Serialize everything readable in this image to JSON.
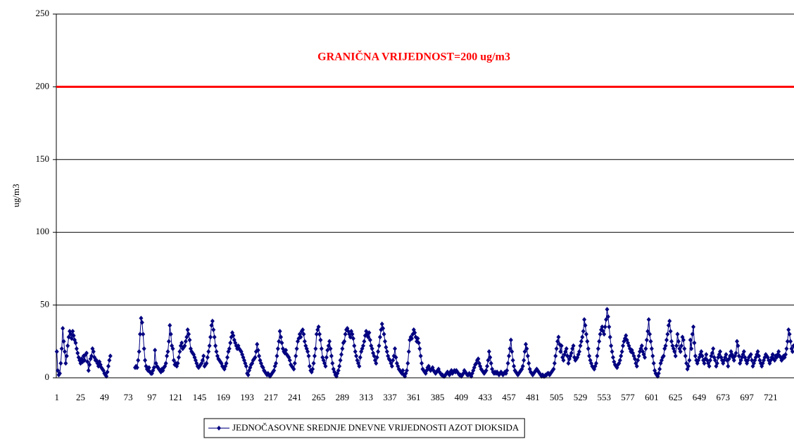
{
  "chart_data": {
    "type": "line",
    "y_label": "ug/m3",
    "annotation": "GRANIČNA VRIJEDNOST=200 ug/m3",
    "threshold": 200,
    "threshold_color": "#ff0000",
    "ylim": [
      0,
      250
    ],
    "yticks": [
      0,
      50,
      100,
      150,
      200,
      250
    ],
    "grid": true,
    "categories": [
      "1",
      null,
      null,
      null,
      null,
      null,
      null,
      null,
      null,
      null,
      null,
      null,
      null,
      null,
      null,
      null,
      null,
      null,
      null,
      null,
      null,
      null,
      null,
      null,
      "25",
      null,
      null,
      null,
      null,
      null,
      null,
      null,
      null,
      null,
      null,
      null,
      null,
      null,
      null,
      null,
      null,
      null,
      null,
      null,
      null,
      null,
      null,
      null,
      "49",
      null,
      null,
      null,
      null,
      null,
      null,
      null,
      null,
      null,
      null,
      null,
      null,
      null,
      null,
      null,
      null,
      null,
      null,
      null,
      null,
      null,
      null,
      null,
      "73",
      null,
      null,
      null,
      null,
      null,
      null,
      null,
      null,
      null,
      null,
      null,
      null,
      null,
      null,
      null,
      null,
      null,
      null,
      null,
      null,
      null,
      null,
      null,
      "97",
      null,
      null,
      null,
      null,
      null,
      null,
      null,
      null,
      null,
      null,
      null,
      null,
      null,
      null,
      null,
      null,
      null,
      null,
      null,
      null,
      null,
      null,
      null,
      "121",
      null,
      null,
      null,
      null,
      null,
      null,
      null,
      null,
      null,
      null,
      null,
      null,
      null,
      null,
      null,
      null,
      null,
      null,
      null,
      null,
      null,
      null,
      null,
      "145",
      null,
      null,
      null,
      null,
      null,
      null,
      null,
      null,
      null,
      null,
      null,
      null,
      null,
      null,
      null,
      null,
      null,
      null,
      null,
      null,
      null,
      null,
      null,
      "169",
      null,
      null,
      null,
      null,
      null,
      null,
      null,
      null,
      null,
      null,
      null,
      null,
      null,
      null,
      null,
      null,
      null,
      null,
      null,
      null,
      null,
      null,
      null,
      "193",
      null,
      null,
      null,
      null,
      null,
      null,
      null,
      null,
      null,
      null,
      null,
      null,
      null,
      null,
      null,
      null,
      null,
      null,
      null,
      null,
      null,
      null,
      null,
      "217",
      null,
      null,
      null,
      null,
      null,
      null,
      null,
      null,
      null,
      null,
      null,
      null,
      null,
      null,
      null,
      null,
      null,
      null,
      null,
      null,
      null,
      null,
      null,
      "241",
      null,
      null,
      null,
      null,
      null,
      null,
      null,
      null,
      null,
      null,
      null,
      null,
      null,
      null,
      null,
      null,
      null,
      null,
      null,
      null,
      null,
      null,
      null,
      "265",
      null,
      null,
      null,
      null,
      null,
      null,
      null,
      null,
      null,
      null,
      null,
      null,
      null,
      null,
      null,
      null,
      null,
      null,
      null,
      null,
      null,
      null,
      null,
      "289",
      null,
      null,
      null,
      null,
      null,
      null,
      null,
      null,
      null,
      null,
      null,
      null,
      null,
      null,
      null,
      null,
      null,
      null,
      null,
      null,
      null,
      null,
      null,
      "313",
      null,
      null,
      null,
      null,
      null,
      null,
      null,
      null,
      null,
      null,
      null,
      null,
      null,
      null,
      null,
      null,
      null,
      null,
      null,
      null,
      null,
      null,
      null,
      "337",
      null,
      null,
      null,
      null,
      null,
      null,
      null,
      null,
      null,
      null,
      null,
      null,
      null,
      null,
      null,
      null,
      null,
      null,
      null,
      null,
      null,
      null,
      null,
      "361",
      null,
      null,
      null,
      null,
      null,
      null,
      null,
      null,
      null,
      null,
      null,
      null,
      null,
      null,
      null,
      null,
      null,
      null,
      null,
      null,
      null,
      null,
      null,
      "385",
      null,
      null,
      null,
      null,
      null,
      null,
      null,
      null,
      null,
      null,
      null,
      null,
      null,
      null,
      null,
      null,
      null,
      null,
      null,
      null,
      null,
      null,
      null,
      "409",
      null,
      null,
      null,
      null,
      null,
      null,
      null,
      null,
      null,
      null,
      null,
      null,
      null,
      null,
      null,
      null,
      null,
      null,
      null,
      null,
      null,
      null,
      null,
      "433",
      null,
      null,
      null,
      null,
      null,
      null,
      null,
      null,
      null,
      null,
      null,
      null,
      null,
      null,
      null,
      null,
      null,
      null,
      null,
      null,
      null,
      null,
      null,
      "457",
      null,
      null,
      null,
      null,
      null,
      null,
      null,
      null,
      null,
      null,
      null,
      null,
      null,
      null,
      null,
      null,
      null,
      null,
      null,
      null,
      null,
      null,
      null,
      "481",
      null,
      null,
      null,
      null,
      null,
      null,
      null,
      null,
      null,
      null,
      null,
      null,
      null,
      null,
      null,
      null,
      null,
      null,
      null,
      null,
      null,
      null,
      null,
      "505",
      null,
      null,
      null,
      null,
      null,
      null,
      null,
      null,
      null,
      null,
      null,
      null,
      null,
      null,
      null,
      null,
      null,
      null,
      null,
      null,
      null,
      null,
      null,
      "529",
      null,
      null,
      null,
      null,
      null,
      null,
      null,
      null,
      null,
      null,
      null,
      null,
      null,
      null,
      null,
      null,
      null,
      null,
      null,
      null,
      null,
      null,
      null,
      "553",
      null,
      null,
      null,
      null,
      null,
      null,
      null,
      null,
      null,
      null,
      null,
      null,
      null,
      null,
      null,
      null,
      null,
      null,
      null,
      null,
      null,
      null,
      null,
      "577",
      null,
      null,
      null,
      null,
      null,
      null,
      null,
      null,
      null,
      null,
      null,
      null,
      null,
      null,
      null,
      null,
      null,
      null,
      null,
      null,
      null,
      null,
      null,
      "601",
      null,
      null,
      null,
      null,
      null,
      null,
      null,
      null,
      null,
      null,
      null,
      null,
      null,
      null,
      null,
      null,
      null,
      null,
      null,
      null,
      null,
      null,
      null,
      "625",
      null,
      null,
      null,
      null,
      null,
      null,
      null,
      null,
      null,
      null,
      null,
      null,
      null,
      null,
      null,
      null,
      null,
      null,
      null,
      null,
      null,
      null,
      null,
      "649",
      null,
      null,
      null,
      null,
      null,
      null,
      null,
      null,
      null,
      null,
      null,
      null,
      null,
      null,
      null,
      null,
      null,
      null,
      null,
      null,
      null,
      null,
      null,
      "673",
      null,
      null,
      null,
      null,
      null,
      null,
      null,
      null,
      null,
      null,
      null,
      null,
      null,
      null,
      null,
      null,
      null,
      null,
      null,
      null,
      null,
      null,
      null,
      "697",
      null,
      null,
      null,
      null,
      null,
      null,
      null,
      null,
      null,
      null,
      null,
      null,
      null,
      null,
      null,
      null,
      null,
      null,
      null,
      null,
      null,
      null,
      null,
      "721",
      null,
      null,
      null,
      null,
      null,
      null,
      null,
      null,
      null,
      null,
      null,
      null,
      null,
      null,
      null,
      null,
      null,
      null,
      null,
      null,
      null,
      null,
      null
    ],
    "series": [
      {
        "name": "JEDNOČASOVNE SREDNJE DNEVNE VRIJEDNOSTI AZOT DIOKSIDA",
        "color": "#000080",
        "values": [
          18,
          5,
          2,
          3,
          10,
          20,
          34,
          25,
          18,
          10,
          15,
          22,
          28,
          32,
          30,
          27,
          32,
          29,
          26,
          24,
          20,
          17,
          14,
          12,
          10,
          13,
          11,
          15,
          12,
          16,
          17,
          11,
          5,
          9,
          13,
          15,
          20,
          18,
          14,
          12,
          12,
          10,
          8,
          11,
          9,
          7,
          6,
          5,
          3,
          2,
          1,
          4,
          8,
          12,
          15,
          null,
          null,
          null,
          null,
          null,
          null,
          null,
          null,
          null,
          null,
          null,
          null,
          null,
          null,
          null,
          null,
          null,
          null,
          null,
          null,
          null,
          null,
          null,
          null,
          7,
          8,
          7,
          12,
          18,
          30,
          41,
          38,
          30,
          20,
          12,
          8,
          6,
          5,
          7,
          4,
          3,
          3,
          5,
          7,
          19,
          10,
          8,
          7,
          6,
          5,
          4,
          6,
          5,
          7,
          8,
          10,
          15,
          18,
          25,
          36,
          30,
          22,
          20,
          12,
          9,
          10,
          8,
          10,
          14,
          18,
          22,
          24,
          20,
          21,
          22,
          25,
          28,
          33,
          30,
          26,
          20,
          18,
          17,
          16,
          14,
          12,
          10,
          8,
          7,
          8,
          9,
          10,
          12,
          15,
          8,
          9,
          10,
          14,
          18,
          22,
          28,
          36,
          39,
          33,
          28,
          22,
          18,
          15,
          13,
          12,
          11,
          10,
          8,
          7,
          6,
          8,
          10,
          14,
          18,
          20,
          24,
          28,
          31,
          29,
          26,
          24,
          22,
          20,
          22,
          20,
          19,
          18,
          16,
          14,
          12,
          10,
          8,
          3,
          2,
          5,
          7,
          9,
          10,
          12,
          13,
          14,
          18,
          23,
          19,
          15,
          12,
          10,
          8,
          7,
          5,
          4,
          3,
          2,
          3,
          2,
          1,
          2,
          3,
          4,
          5,
          8,
          10,
          15,
          20,
          25,
          32,
          28,
          24,
          20,
          18,
          17,
          19,
          16,
          15,
          14,
          12,
          9,
          8,
          7,
          6,
          10,
          15,
          20,
          25,
          27,
          30,
          28,
          32,
          33,
          30,
          25,
          22,
          20,
          18,
          15,
          8,
          5,
          4,
          6,
          10,
          15,
          20,
          30,
          33,
          35,
          30,
          26,
          20,
          14,
          12,
          10,
          8,
          14,
          19,
          22,
          25,
          20,
          15,
          10,
          6,
          4,
          2,
          1,
          3,
          5,
          8,
          12,
          16,
          20,
          24,
          25,
          30,
          33,
          34,
          32,
          30,
          28,
          32,
          30,
          27,
          22,
          18,
          15,
          12,
          10,
          8,
          14,
          18,
          20,
          22,
          25,
          29,
          32,
          30,
          28,
          31,
          26,
          22,
          20,
          17,
          15,
          12,
          10,
          14,
          18,
          22,
          28,
          33,
          37,
          34,
          30,
          25,
          21,
          18,
          15,
          13,
          12,
          10,
          8,
          12,
          15,
          20,
          14,
          10,
          8,
          6,
          5,
          4,
          3,
          5,
          2,
          1,
          3,
          5,
          10,
          18,
          26,
          28,
          27,
          30,
          33,
          31,
          28,
          25,
          27,
          24,
          20,
          15,
          10,
          6,
          5,
          4,
          3,
          5,
          7,
          8,
          6,
          5,
          6,
          7,
          5,
          4,
          3,
          4,
          5,
          6,
          4,
          3,
          2,
          2,
          1,
          1,
          2,
          3,
          4,
          3,
          2,
          4,
          5,
          3,
          4,
          5,
          4,
          5,
          4,
          3,
          2,
          2,
          1,
          2,
          3,
          5,
          4,
          3,
          2,
          2,
          3,
          2,
          1,
          3,
          5,
          7,
          9,
          10,
          12,
          13,
          10,
          8,
          6,
          5,
          4,
          3,
          4,
          5,
          8,
          12,
          18,
          14,
          10,
          6,
          4,
          3,
          4,
          3,
          4,
          3,
          2,
          3,
          4,
          3,
          2,
          3,
          4,
          3,
          5,
          10,
          15,
          20,
          26,
          18,
          12,
          8,
          5,
          4,
          3,
          2,
          3,
          4,
          5,
          6,
          8,
          12,
          18,
          23,
          20,
          15,
          10,
          6,
          4,
          3,
          2,
          3,
          4,
          5,
          6,
          5,
          4,
          3,
          2,
          1,
          2,
          1,
          1,
          2,
          2,
          3,
          3,
          2,
          3,
          4,
          5,
          6,
          10,
          15,
          20,
          25,
          28,
          23,
          18,
          22,
          14,
          12,
          16,
          18,
          20,
          15,
          10,
          13,
          15,
          17,
          20,
          22,
          14,
          12,
          13,
          14,
          16,
          18,
          22,
          25,
          28,
          32,
          40,
          36,
          30,
          25,
          20,
          15,
          12,
          10,
          8,
          7,
          6,
          8,
          10,
          15,
          20,
          25,
          30,
          33,
          35,
          32,
          30,
          35,
          40,
          47,
          42,
          35,
          28,
          22,
          18,
          14,
          11,
          9,
          8,
          7,
          9,
          10,
          12,
          15,
          18,
          22,
          25,
          27,
          29,
          26,
          24,
          22,
          20,
          18,
          19,
          17,
          15,
          13,
          10,
          8,
          12,
          15,
          18,
          20,
          22,
          18,
          16,
          14,
          20,
          26,
          32,
          40,
          30,
          25,
          20,
          15,
          10,
          5,
          3,
          2,
          1,
          3,
          6,
          10,
          12,
          14,
          15,
          20,
          22,
          26,
          30,
          36,
          39,
          32,
          25,
          22,
          20,
          18,
          15,
          22,
          30,
          25,
          20,
          18,
          22,
          28,
          26,
          20,
          15,
          10,
          6,
          8,
          12,
          26,
          20,
          30,
          35,
          24,
          15,
          12,
          10,
          12,
          14,
          16,
          18,
          15,
          12,
          10,
          13,
          16,
          12,
          10,
          8,
          12,
          15,
          17,
          20,
          14,
          12,
          8,
          10,
          14,
          16,
          18,
          14,
          12,
          10,
          12,
          14,
          16,
          12,
          8,
          13,
          15,
          18,
          16,
          14,
          12,
          15,
          17,
          25,
          22,
          15,
          10,
          12,
          14,
          16,
          18,
          14,
          12,
          10,
          12,
          14,
          15,
          16,
          12,
          8,
          10,
          12,
          14,
          16,
          18,
          15,
          12,
          10,
          8,
          10,
          12,
          14,
          16,
          15,
          14,
          12,
          10,
          12,
          14,
          16,
          13,
          12,
          15,
          14,
          16,
          18,
          15,
          14,
          12,
          13,
          15,
          14,
          16,
          20,
          25,
          33,
          30,
          25,
          20,
          18,
          22
        ]
      }
    ]
  }
}
